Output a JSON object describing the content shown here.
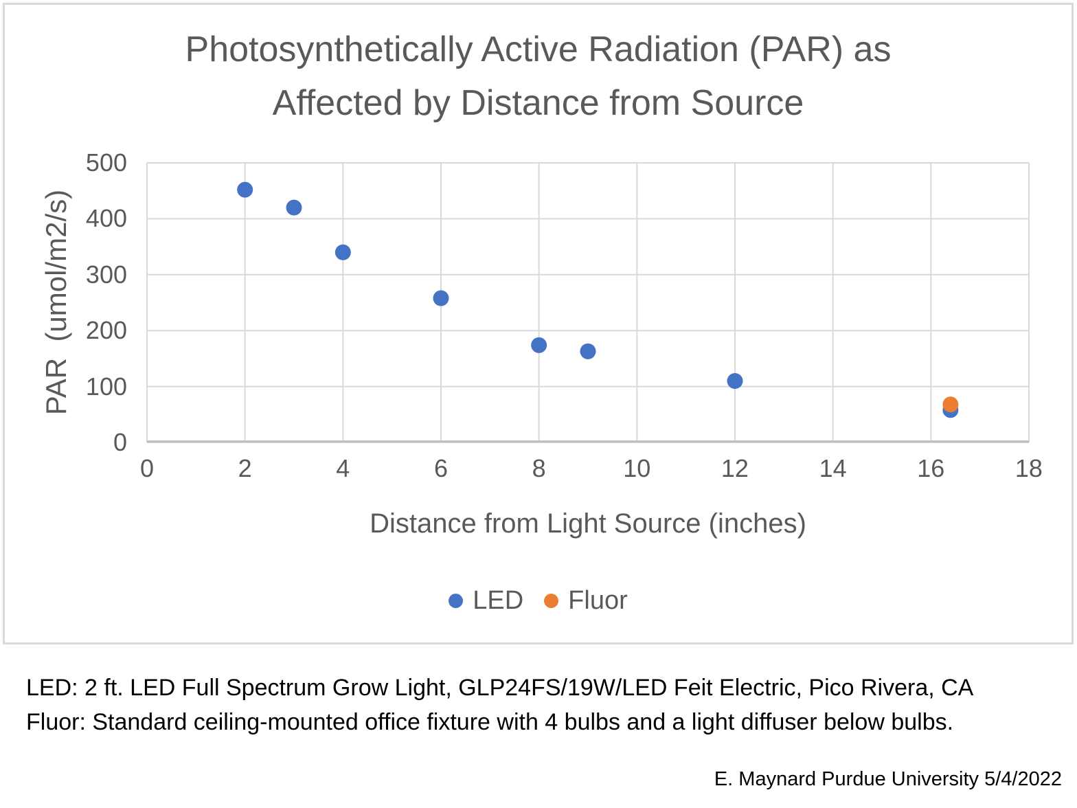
{
  "chart": {
    "title_line1": "Photosynthetically Active Radiation (PAR) as",
    "title_line2": "Affected by Distance from Source"
  },
  "chart_data": {
    "type": "scatter",
    "title": "Photosynthetically Active Radiation (PAR) as Affected by Distance from Source",
    "xlabel": "Distance from Light Source (inches)",
    "ylabel": "PAR  (umol/m2/s)",
    "xlim": [
      0,
      18
    ],
    "ylim": [
      0,
      500
    ],
    "xticks": [
      0,
      2,
      4,
      6,
      8,
      10,
      12,
      14,
      16,
      18
    ],
    "yticks": [
      0,
      100,
      200,
      300,
      400,
      500
    ],
    "grid": true,
    "legend_position": "bottom",
    "series": [
      {
        "name": "LED",
        "color": "#4472C4",
        "points": [
          [
            2,
            452
          ],
          [
            3,
            420
          ],
          [
            4,
            340
          ],
          [
            6,
            258
          ],
          [
            8,
            174
          ],
          [
            9,
            163
          ],
          [
            12,
            110
          ],
          [
            16.4,
            58
          ]
        ]
      },
      {
        "name": "Fluor",
        "color": "#ED7D31",
        "points": [
          [
            16.4,
            68
          ]
        ]
      }
    ]
  },
  "footer": {
    "line1": "LED: 2 ft. LED Full Spectrum Grow Light, GLP24FS/19W/LED Feit Electric, Pico Rivera, CA",
    "line2": "Fluor: Standard ceiling-mounted office fixture with 4 bulbs and a light diffuser below bulbs."
  },
  "credit": "E. Maynard Purdue University 5/4/2022",
  "colors": {
    "grid": "#D9D9D9",
    "axis": "#BFBFBF",
    "text": "#595959",
    "frame_border": "#D9D9D9",
    "led": "#4472C4",
    "fluor": "#ED7D31"
  }
}
